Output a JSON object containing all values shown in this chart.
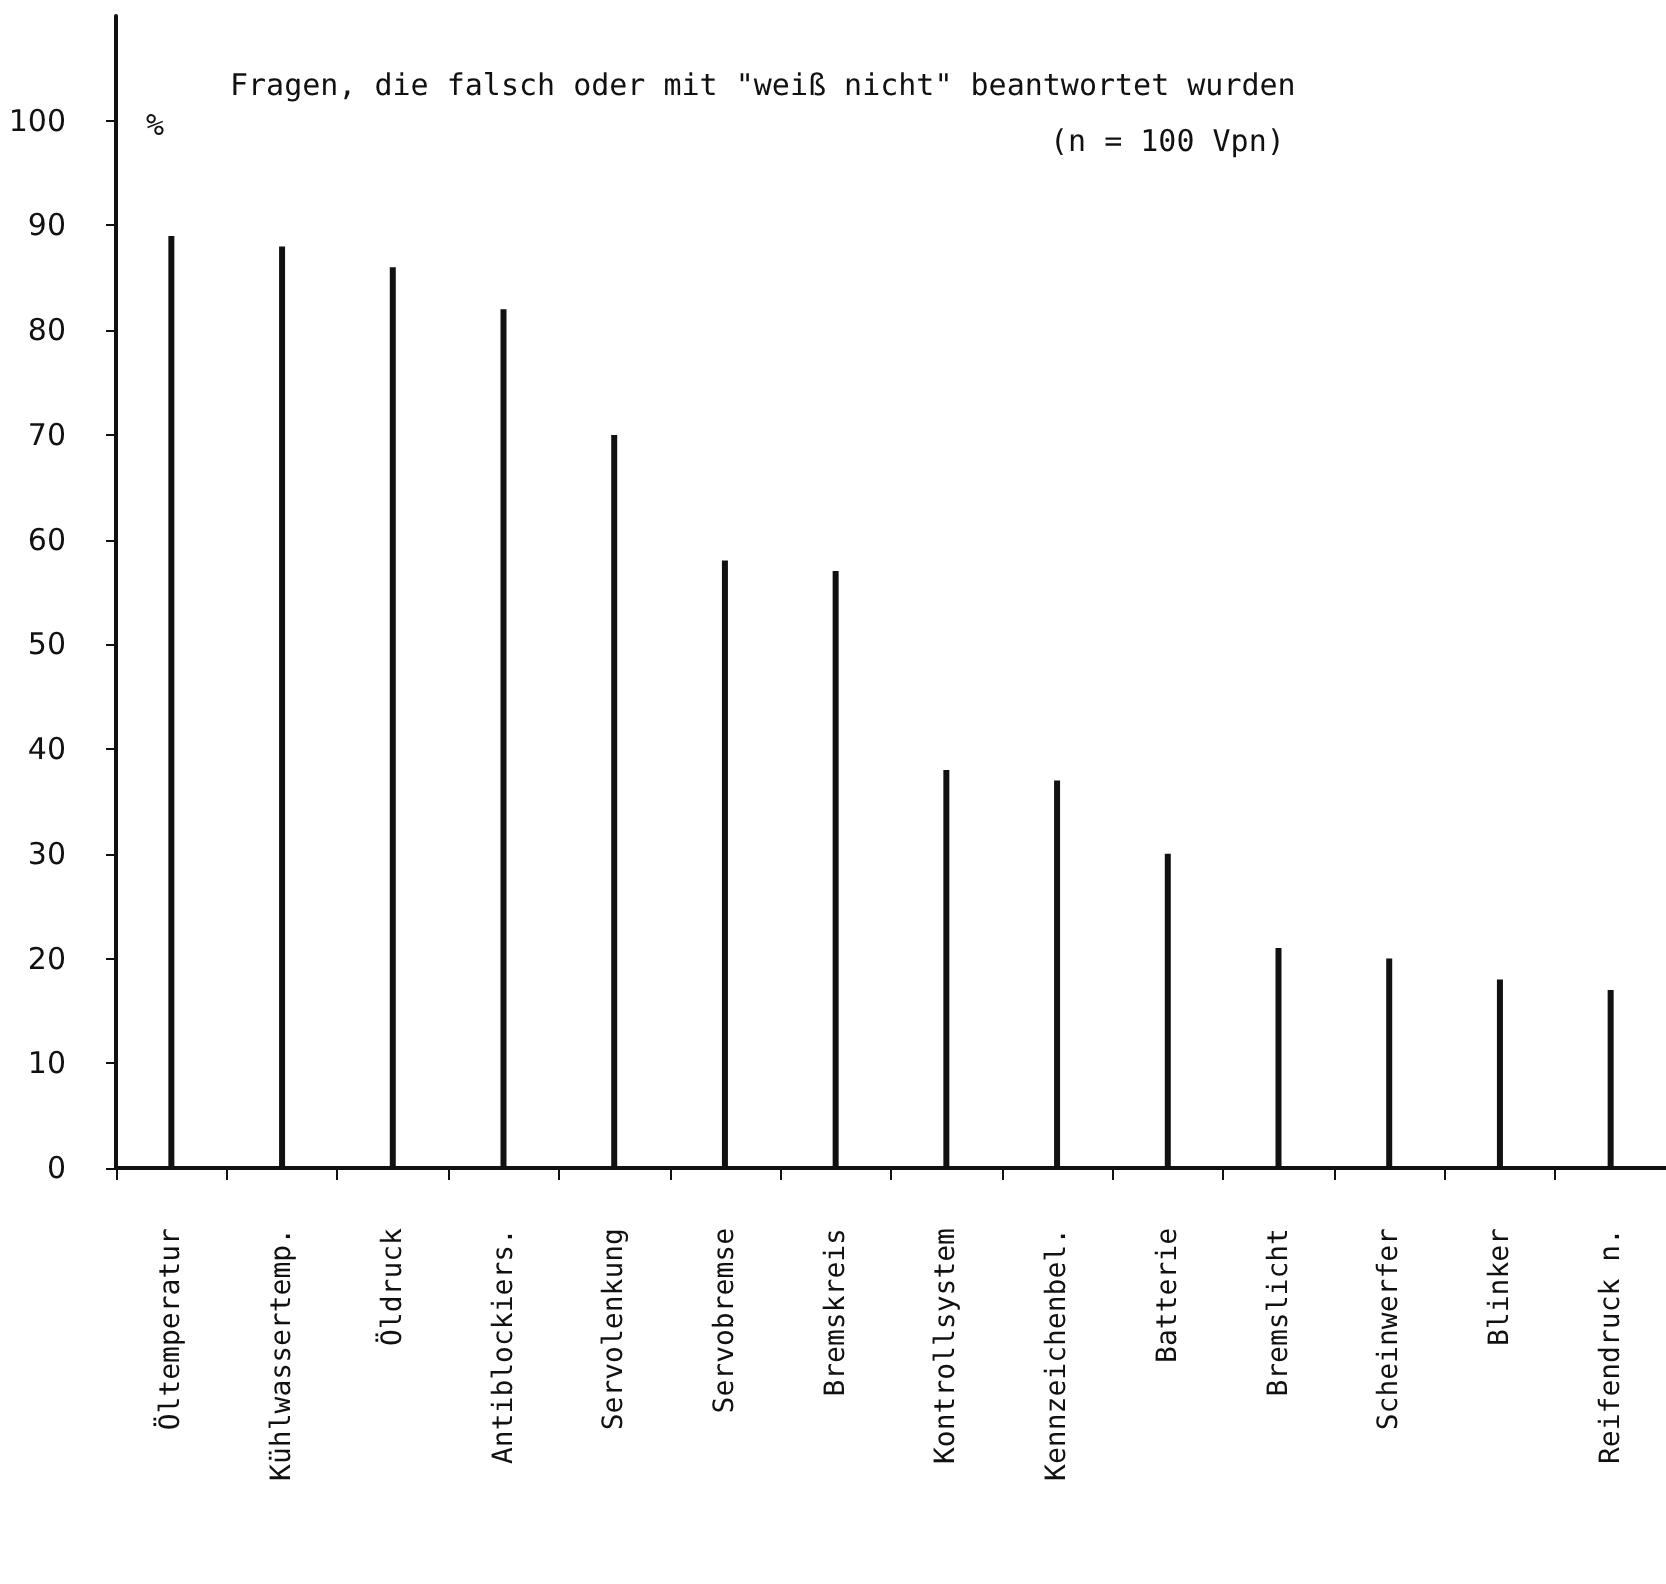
{
  "chart_data": {
    "type": "bar",
    "title": "Fragen, die falsch oder mit \"weiß nicht\" beantwortet wurden",
    "subtitle": "(n = 100 Vpn)",
    "ylabel": "%",
    "categories": [
      "Öltemperatur",
      "Kühlwassertemp.",
      "Öldruck",
      "Antiblockiers.",
      "Servolenkung",
      "Servobremse",
      "Bremskreis",
      "Kontrollsystem",
      "Kennzeichenbel.",
      "Batterie",
      "Bremslicht",
      "Scheinwerfer",
      "Blinker",
      "Reifendruck n."
    ],
    "values": [
      89,
      88,
      86,
      82,
      70,
      58,
      57,
      38,
      37,
      30,
      21,
      20,
      18,
      17
    ],
    "color": "#111111",
    "ylim": [
      0,
      110
    ],
    "yticks": [
      0,
      10,
      20,
      30,
      40,
      50,
      60,
      70,
      80,
      90,
      100
    ],
    "grid": false
  }
}
